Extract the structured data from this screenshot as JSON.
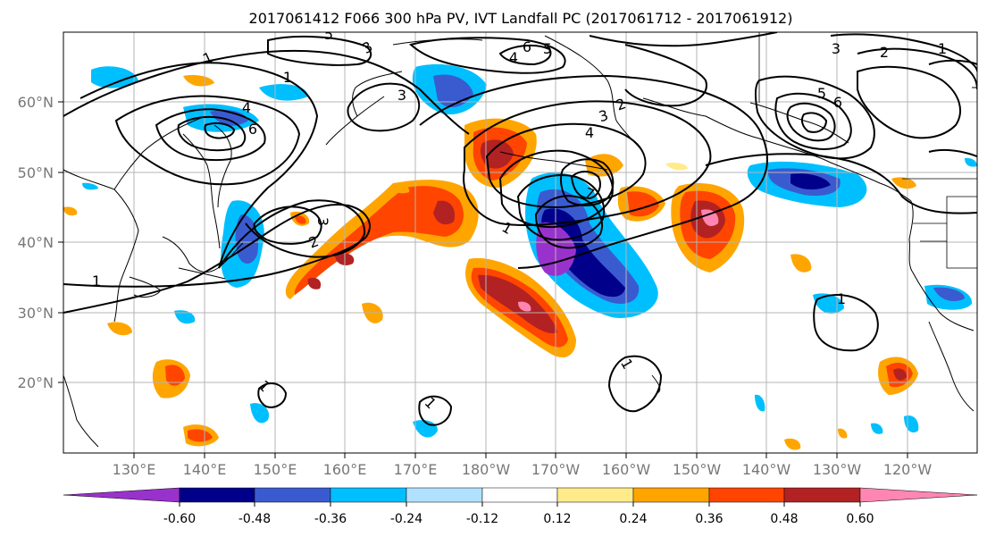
{
  "figure": {
    "title": "2017061412 F066 300 hPa PV, IVT Landfall PC (2017061712 - 2017061912)",
    "lon_ticks": [
      "130°E",
      "140°E",
      "150°E",
      "160°E",
      "170°E",
      "180°W",
      "170°W",
      "160°W",
      "150°W",
      "140°W",
      "130°W",
      "120°W"
    ],
    "lat_ticks": [
      "60°N",
      "50°N",
      "40°N",
      "30°N",
      "20°N"
    ]
  },
  "colorbar": {
    "colors": [
      "#9932cc",
      "#00008b",
      "#3a5bd0",
      "#00bfff",
      "#b0e2ff",
      "#ffffff",
      "#ffeb8a",
      "#ffa500",
      "#ff4500",
      "#b22222",
      "#ff86b3"
    ],
    "labels": [
      "-0.60",
      "-0.48",
      "-0.36",
      "-0.24",
      "-0.12",
      "0.12",
      "0.24",
      "0.36",
      "0.48",
      "0.60"
    ]
  },
  "contour_labels": [
    "1",
    "1",
    "1",
    "1",
    "2",
    "2",
    "2",
    "3",
    "3",
    "3",
    "3",
    "4",
    "4",
    "4",
    "5",
    "5",
    "5",
    "6",
    "6",
    "6",
    "7",
    "1",
    "1",
    "1",
    "1",
    "1",
    "3"
  ]
}
